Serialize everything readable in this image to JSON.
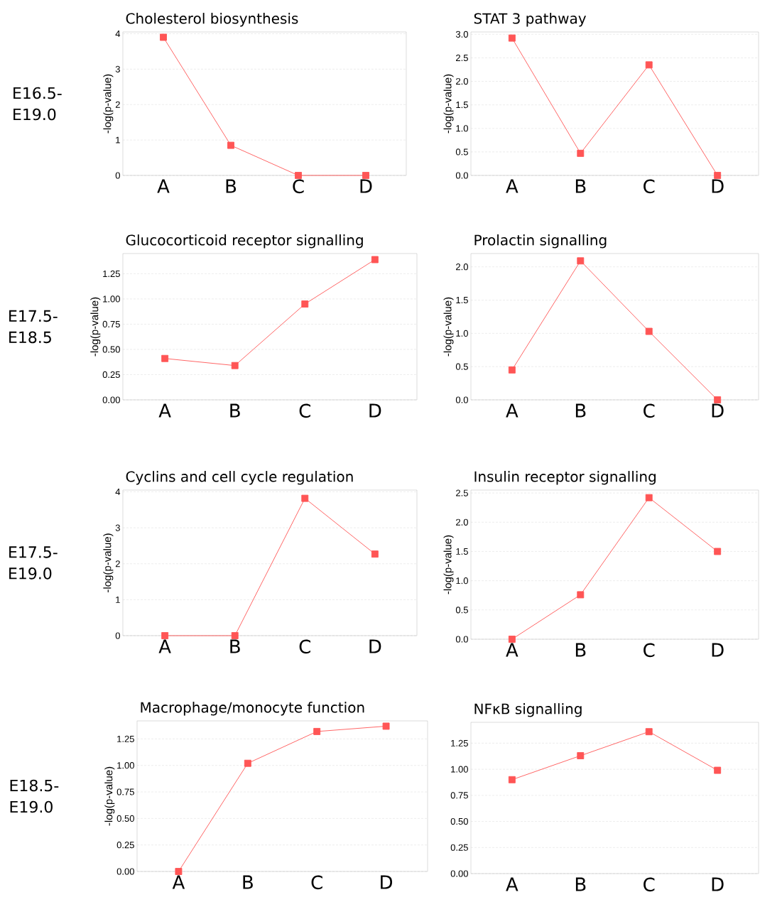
{
  "chart_data": [
    {
      "type": "line",
      "title": "Cholesterol biosynthesis",
      "ylabel": "-log(p-value)",
      "categories": [
        "A",
        "B",
        "C",
        "D"
      ],
      "values": [
        3.9,
        0.85,
        0,
        0
      ],
      "color": "#ff5555",
      "marker": "square",
      "grid": "y",
      "ylim": [
        0,
        4.05
      ],
      "yticks": [
        0,
        1,
        2,
        3,
        4
      ],
      "annotations": [
        "E16.5-E19.0"
      ]
    },
    {
      "type": "line",
      "title": "STAT 3 pathway",
      "ylabel": "-log(p-value)",
      "categories": [
        "A",
        "B",
        "C",
        "D"
      ],
      "values": [
        2.92,
        0.47,
        2.35,
        0
      ],
      "color": "#ff5555",
      "marker": "square",
      "grid": "y",
      "ylim": [
        0,
        3.05
      ],
      "yticks": [
        {
          "value": 0,
          "label": "0.0"
        },
        0.5,
        {
          "value": 1,
          "label": "1.0"
        },
        1.5,
        {
          "value": 2,
          "label": "2.0"
        },
        2.5,
        {
          "value": 3,
          "label": "3.0"
        }
      ]
    },
    {
      "type": "line",
      "title": "Glucocorticoid receptor signalling",
      "ylabel": "-log(p-value)",
      "categories": [
        "A",
        "B",
        "C",
        "D"
      ],
      "values": [
        0.41,
        0.34,
        0.95,
        1.39
      ],
      "color": "#ff5555",
      "marker": "square",
      "grid": "y",
      "ylim": [
        0,
        1.45
      ],
      "yticks": [
        {
          "value": 0,
          "label": "0.00"
        },
        0.25,
        {
          "value": 0.5,
          "label": "0.50"
        },
        0.75,
        {
          "value": 1,
          "label": "1.00"
        },
        1.25
      ],
      "annotations": [
        "E17.5-E18.5"
      ]
    },
    {
      "type": "line",
      "title": "Prolactin signalling",
      "ylabel": "-log(p-value)",
      "categories": [
        "A",
        "B",
        "C",
        "D"
      ],
      "values": [
        0.45,
        2.09,
        1.03,
        0
      ],
      "color": "#ff5555",
      "marker": "square",
      "grid": "y",
      "ylim": [
        0,
        2.2
      ],
      "yticks": [
        {
          "value": 0,
          "label": "0.0"
        },
        0.5,
        {
          "value": 1,
          "label": "1.0"
        },
        1.5,
        {
          "value": 2,
          "label": "2.0"
        }
      ]
    },
    {
      "type": "line",
      "title": "Cyclins and cell cycle regulation",
      "ylabel": "-log(p-value)",
      "categories": [
        "A",
        "B",
        "C",
        "D"
      ],
      "values": [
        0,
        0,
        3.82,
        2.27
      ],
      "color": "#ff5555",
      "marker": "square",
      "grid": "y",
      "ylim": [
        0,
        4.05
      ],
      "yticks": [
        0,
        1,
        2,
        3,
        4
      ],
      "annotations": [
        "E17.5-E19.0"
      ]
    },
    {
      "type": "line",
      "title": "Insulin receptor signalling",
      "ylabel": "-log(p-value)",
      "categories": [
        "A",
        "B",
        "C",
        "D"
      ],
      "values": [
        0,
        0.76,
        2.42,
        1.5
      ],
      "color": "#ff5555",
      "marker": "square",
      "grid": "y",
      "ylim": [
        0,
        2.55
      ],
      "yticks": [
        {
          "value": 0,
          "label": "0.0"
        },
        0.5,
        {
          "value": 1,
          "label": "1.0"
        },
        1.5,
        {
          "value": 2,
          "label": "2.0"
        },
        2.5
      ]
    },
    {
      "type": "line",
      "title": "Macrophage/monocyte function",
      "ylabel": "-log(p-value)",
      "categories": [
        "A",
        "B",
        "C",
        "D"
      ],
      "values": [
        0,
        1.02,
        1.32,
        1.37
      ],
      "color": "#ff5555",
      "marker": "square",
      "grid": "y",
      "ylim": [
        0,
        1.42
      ],
      "yticks": [
        {
          "value": 0,
          "label": "0.00"
        },
        0.25,
        {
          "value": 0.5,
          "label": "0.50"
        },
        0.75,
        {
          "value": 1,
          "label": "1.00"
        },
        1.25
      ],
      "annotations": [
        "E18.5-E19.0"
      ]
    },
    {
      "type": "line",
      "title": "NFκB signalling",
      "categories": [
        "A",
        "B",
        "C",
        "D"
      ],
      "values": [
        0.9,
        1.13,
        1.36,
        0.99
      ],
      "color": "#ff5555",
      "marker": "square",
      "grid": "y",
      "ylim": [
        0,
        1.45
      ],
      "yticks": [
        {
          "value": 0,
          "label": "0.00"
        },
        0.25,
        {
          "value": 0.5,
          "label": "0.50"
        },
        0.75,
        {
          "value": 1,
          "label": "1.00"
        },
        1.25
      ]
    }
  ]
}
